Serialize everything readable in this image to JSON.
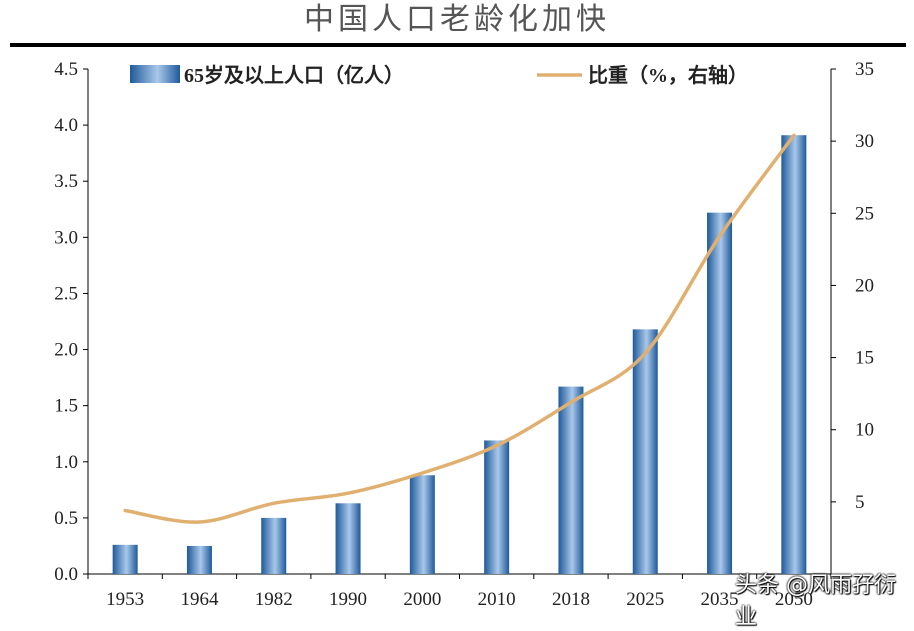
{
  "chart_data": {
    "type": "bar",
    "title": "中国人口老龄化加快",
    "categories": [
      "1953",
      "1964",
      "1982",
      "1990",
      "2000",
      "2010",
      "2018",
      "2025",
      "2035",
      "2050"
    ],
    "series": [
      {
        "name": "65岁及以上人口（亿人）",
        "type": "bar",
        "axis": "left",
        "values": [
          0.26,
          0.25,
          0.5,
          0.63,
          0.88,
          1.19,
          1.67,
          2.18,
          3.22,
          3.91
        ]
      },
      {
        "name": "比重（%，右轴）",
        "type": "line",
        "axis": "right",
        "values": [
          4.4,
          3.6,
          4.9,
          5.6,
          7.0,
          8.9,
          11.9,
          15.3,
          23.4,
          30.4
        ]
      }
    ],
    "y_left": {
      "min": 0,
      "max": 4.5,
      "ticks": [
        "0.0",
        "0.5",
        "1.0",
        "1.5",
        "2.0",
        "2.5",
        "3.0",
        "3.5",
        "4.0",
        "4.5"
      ]
    },
    "y_right": {
      "min": 0,
      "max": 35,
      "ticks": [
        "5",
        "10",
        "15",
        "20",
        "25",
        "30",
        "35"
      ]
    },
    "grid": false,
    "legend_position": "top",
    "colors": {
      "bar_dark": "#1f5a9a",
      "bar_light": "#a9c8ea",
      "line": "#e0b070",
      "axis": "#000000"
    }
  },
  "watermark": "头条 @风雨孖衍业"
}
